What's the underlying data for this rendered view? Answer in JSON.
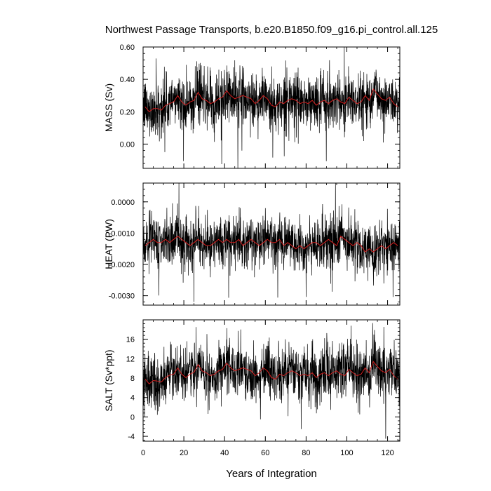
{
  "title": "Northwest Passage Transports, b.e20.B1850.f09_g16.pi_control.all.125",
  "xlabel": "Years of Integration",
  "colors": {
    "monthly": "#000000",
    "annual_mean": "#d21e1e",
    "frame": "#000000"
  },
  "chart_data": [
    {
      "type": "line",
      "ylabel": "MASS (Sv)",
      "xlim": [
        0,
        126
      ],
      "ylim": [
        -0.15,
        0.6
      ],
      "yticks": [
        0.0,
        0.2,
        0.4,
        0.6
      ],
      "ytick_labels": [
        "0.00",
        "0.20",
        "0.40",
        "0.60"
      ],
      "xticks": [
        0,
        20,
        40,
        60,
        80,
        100,
        120
      ],
      "xtick_labels": [
        "0",
        "20",
        "40",
        "60",
        "80",
        "100",
        "120"
      ],
      "monthly_series": {
        "mean": 0.25,
        "std": 0.085,
        "min": -0.15,
        "max": 0.6
      },
      "annual_mean_x": [
        1,
        3,
        5,
        7,
        9,
        11,
        13,
        15,
        17,
        19,
        21,
        23,
        25,
        27,
        29,
        31,
        33,
        35,
        37,
        39,
        41,
        43,
        45,
        47,
        49,
        51,
        53,
        55,
        57,
        59,
        61,
        63,
        65,
        67,
        69,
        71,
        73,
        75,
        77,
        79,
        81,
        83,
        85,
        87,
        89,
        91,
        93,
        95,
        97,
        99,
        101,
        103,
        105,
        107,
        109,
        111,
        113,
        115,
        117,
        119,
        121,
        123,
        125
      ],
      "annual_mean_y": [
        0.23,
        0.2,
        0.22,
        0.22,
        0.21,
        0.24,
        0.25,
        0.26,
        0.3,
        0.26,
        0.24,
        0.26,
        0.27,
        0.32,
        0.28,
        0.27,
        0.25,
        0.26,
        0.28,
        0.29,
        0.33,
        0.3,
        0.28,
        0.29,
        0.3,
        0.29,
        0.28,
        0.25,
        0.27,
        0.3,
        0.28,
        0.24,
        0.23,
        0.26,
        0.25,
        0.27,
        0.28,
        0.27,
        0.25,
        0.26,
        0.25,
        0.27,
        0.24,
        0.26,
        0.27,
        0.25,
        0.27,
        0.28,
        0.26,
        0.25,
        0.29,
        0.27,
        0.25,
        0.26,
        0.3,
        0.27,
        0.34,
        0.31,
        0.28,
        0.27,
        0.29,
        0.25,
        0.23
      ]
    },
    {
      "type": "line",
      "ylabel": "HEAT (PW)",
      "xlim": [
        0,
        126
      ],
      "ylim": [
        -0.0033,
        0.0006
      ],
      "yticks": [
        -0.003,
        -0.002,
        -0.001,
        0.0
      ],
      "ytick_labels": [
        "-0.0030",
        "-0.0020",
        "-0.0010",
        "0.0000"
      ],
      "xticks": [
        0,
        20,
        40,
        60,
        80,
        100,
        120
      ],
      "xtick_labels": [
        "0",
        "20",
        "40",
        "60",
        "80",
        "100",
        "120"
      ],
      "monthly_series": {
        "mean": -0.00135,
        "std": 0.00042,
        "min": -0.0032,
        "max": 0.0006
      },
      "annual_mean_x": [
        1,
        3,
        5,
        7,
        9,
        11,
        13,
        15,
        17,
        19,
        21,
        23,
        25,
        27,
        29,
        31,
        33,
        35,
        37,
        39,
        41,
        43,
        45,
        47,
        49,
        51,
        53,
        55,
        57,
        59,
        61,
        63,
        65,
        67,
        69,
        71,
        73,
        75,
        77,
        79,
        81,
        83,
        85,
        87,
        89,
        91,
        93,
        95,
        97,
        99,
        101,
        103,
        105,
        107,
        109,
        111,
        113,
        115,
        117,
        119,
        121,
        123,
        125
      ],
      "annual_mean_y": [
        -0.0014,
        -0.0013,
        -0.0012,
        -0.0013,
        -0.0013,
        -0.0012,
        -0.0013,
        -0.0012,
        -0.0011,
        -0.0012,
        -0.0013,
        -0.0014,
        -0.0013,
        -0.0012,
        -0.0013,
        -0.0014,
        -0.0014,
        -0.0013,
        -0.0012,
        -0.0013,
        -0.0012,
        -0.0013,
        -0.0013,
        -0.0012,
        -0.0014,
        -0.0013,
        -0.0012,
        -0.0013,
        -0.0014,
        -0.0013,
        -0.0012,
        -0.0013,
        -0.0013,
        -0.0012,
        -0.0014,
        -0.0013,
        -0.0014,
        -0.0015,
        -0.0014,
        -0.0015,
        -0.0014,
        -0.0013,
        -0.0013,
        -0.0014,
        -0.0013,
        -0.0012,
        -0.0013,
        -0.0014,
        -0.0011,
        -0.0012,
        -0.0013,
        -0.0014,
        -0.0013,
        -0.0014,
        -0.0016,
        -0.0015,
        -0.0016,
        -0.0015,
        -0.0014,
        -0.0015,
        -0.0014,
        -0.0013,
        -0.0014
      ]
    },
    {
      "type": "line",
      "ylabel": "SALT (Sv*ppt)",
      "xlim": [
        0,
        126
      ],
      "ylim": [
        -5,
        20
      ],
      "yticks": [
        -4,
        0,
        4,
        8,
        12,
        16
      ],
      "ytick_labels": [
        "-4",
        "0",
        "4",
        "8",
        "12",
        "16"
      ],
      "xticks": [
        0,
        20,
        40,
        60,
        80,
        100,
        120
      ],
      "xtick_labels": [
        "0",
        "20",
        "40",
        "60",
        "80",
        "100",
        "120"
      ],
      "monthly_series": {
        "mean": 8.5,
        "std": 2.9,
        "min": -4.5,
        "max": 20
      },
      "annual_mean_x": [
        1,
        3,
        5,
        7,
        9,
        11,
        13,
        15,
        17,
        19,
        21,
        23,
        25,
        27,
        29,
        31,
        33,
        35,
        37,
        39,
        41,
        43,
        45,
        47,
        49,
        51,
        53,
        55,
        57,
        59,
        61,
        63,
        65,
        67,
        69,
        71,
        73,
        75,
        77,
        79,
        81,
        83,
        85,
        87,
        89,
        91,
        93,
        95,
        97,
        99,
        101,
        103,
        105,
        107,
        109,
        111,
        113,
        115,
        117,
        119,
        121,
        123,
        125
      ],
      "annual_mean_y": [
        7.8,
        6.8,
        7.5,
        7.4,
        7.2,
        8.1,
        8.6,
        8.8,
        10.1,
        8.8,
        8.1,
        8.8,
        9.2,
        10.8,
        9.5,
        9.1,
        8.5,
        8.8,
        9.5,
        9.8,
        11.1,
        10.1,
        9.5,
        9.8,
        10.1,
        9.8,
        9.5,
        8.5,
        9.1,
        10.1,
        9.5,
        8.1,
        7.8,
        8.8,
        8.5,
        9.1,
        9.5,
        9.1,
        8.5,
        8.8,
        8.5,
        9.1,
        8.1,
        8.8,
        9.1,
        8.5,
        9.1,
        9.5,
        8.8,
        8.5,
        9.8,
        9.1,
        8.5,
        8.8,
        10.1,
        9.1,
        11.4,
        10.4,
        9.5,
        9.1,
        9.8,
        8.5,
        7.8
      ]
    }
  ]
}
